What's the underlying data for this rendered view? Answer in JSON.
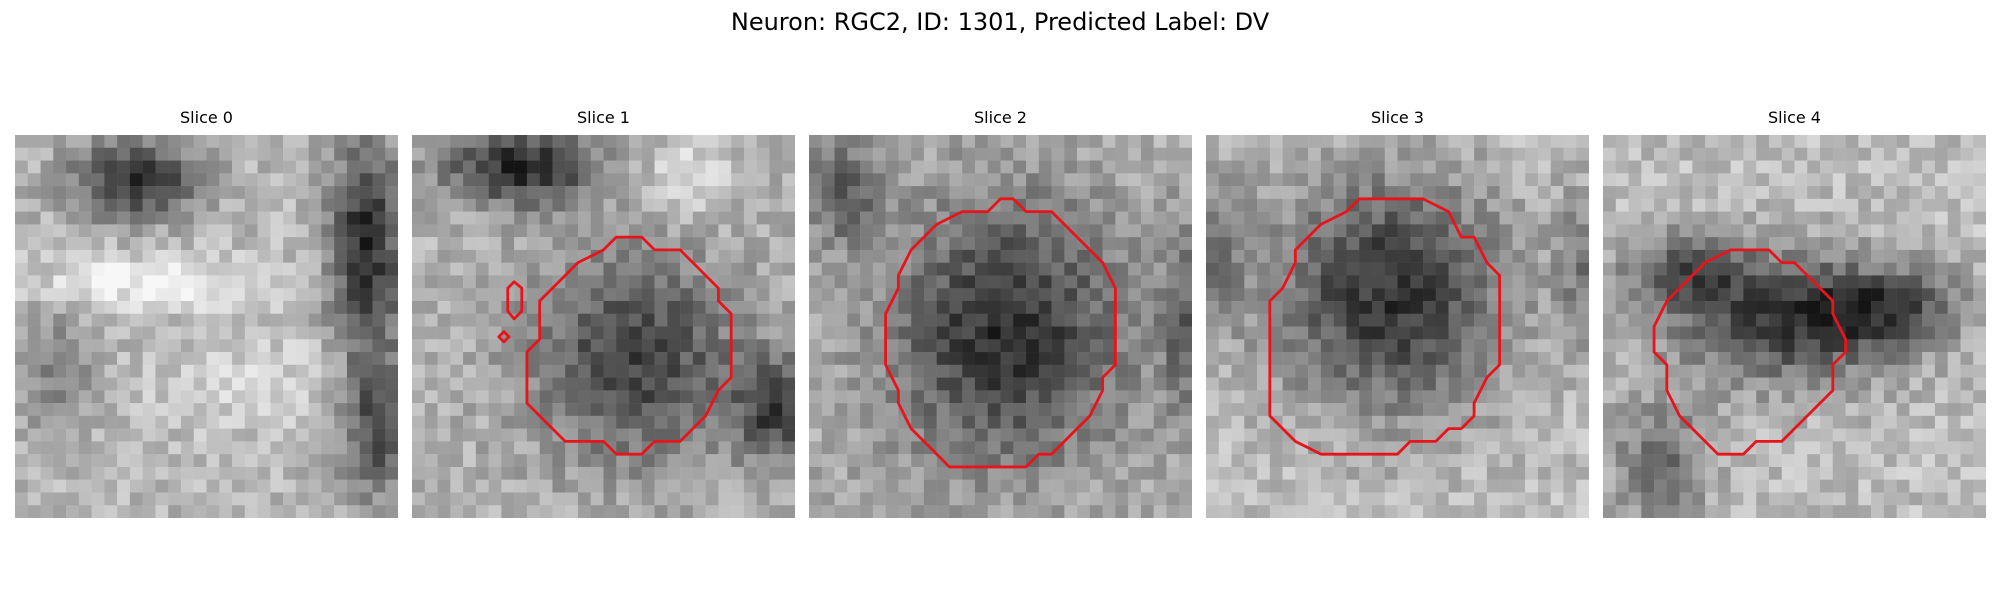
{
  "figure": {
    "title": "Neuron: RGC2, ID: 1301, Predicted Label: DV"
  },
  "colors": {
    "contour": "#e8141b"
  },
  "slices": [
    {
      "title": "Slice 0",
      "has_contour": false
    },
    {
      "title": "Slice 1",
      "has_contour": true
    },
    {
      "title": "Slice 2",
      "has_contour": true
    },
    {
      "title": "Slice 3",
      "has_contour": true
    },
    {
      "title": "Slice 4",
      "has_contour": true
    }
  ]
}
